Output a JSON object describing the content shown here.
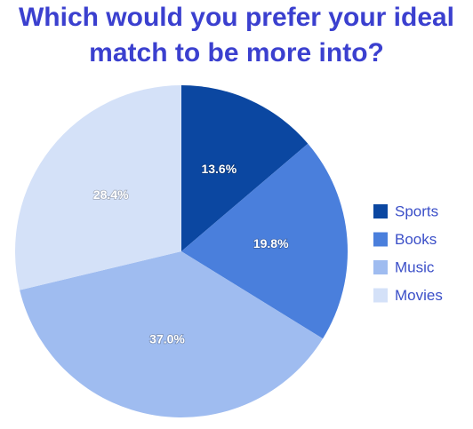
{
  "chart_data": {
    "type": "pie",
    "title": "Which would you prefer your ideal match to be more into?",
    "categories": [
      "Sports",
      "Books",
      "Music",
      "Movies"
    ],
    "values": [
      13.6,
      19.8,
      37.0,
      28.4
    ],
    "value_labels": [
      "13.6%",
      "19.8%",
      "37.0%",
      "28.4%"
    ],
    "colors": [
      "#0b47a1",
      "#4a7fdc",
      "#9fbcf0",
      "#d4e1f8"
    ]
  }
}
